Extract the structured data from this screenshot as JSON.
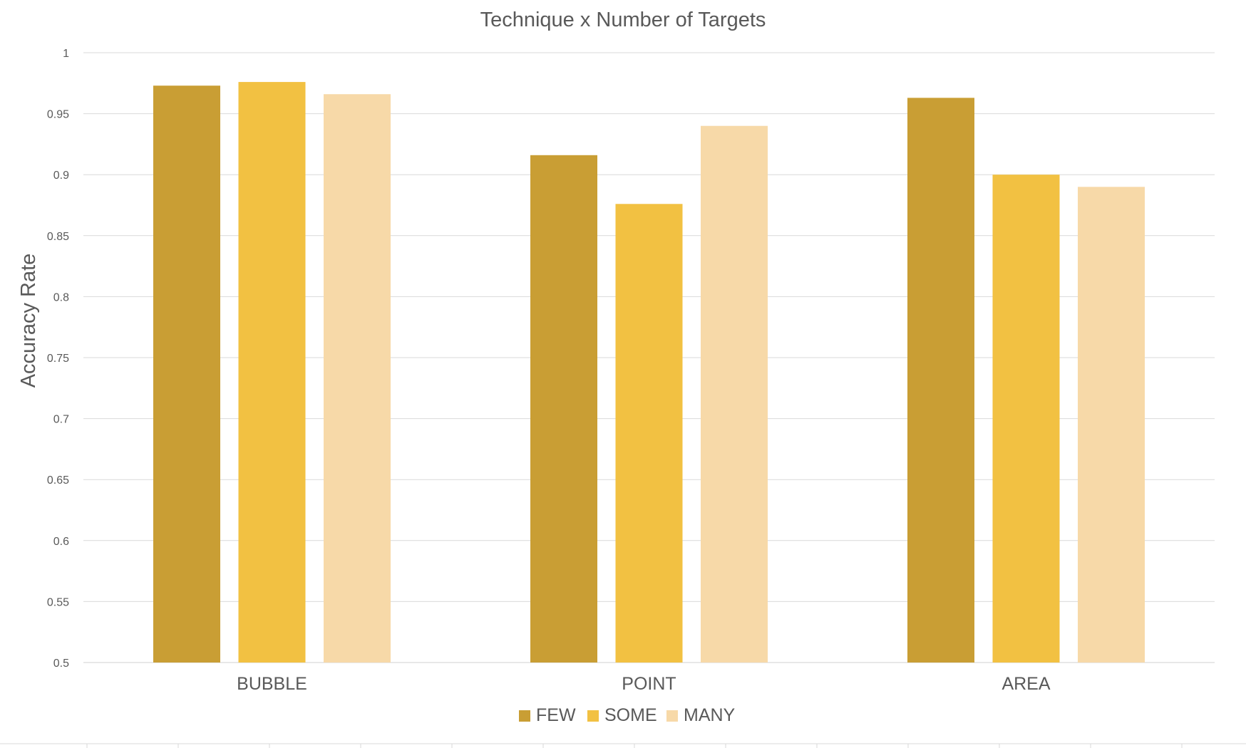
{
  "chart_data": {
    "type": "bar",
    "title": "Technique x Number of Targets",
    "xlabel": "",
    "ylabel": "Accuracy Rate",
    "categories": [
      "BUBBLE",
      "POINT",
      "AREA"
    ],
    "series": [
      {
        "name": "FEW",
        "values": [
          0.973,
          0.916,
          0.963
        ],
        "color": "#c99e34"
      },
      {
        "name": "SOME",
        "values": [
          0.976,
          0.876,
          0.9
        ],
        "color": "#f2c142"
      },
      {
        "name": "MANY",
        "values": [
          0.966,
          0.94,
          0.89
        ],
        "color": "#f7d9a8"
      }
    ],
    "ylim": [
      0.5,
      1
    ],
    "yticks": [
      0.5,
      0.55,
      0.6,
      0.65,
      0.7,
      0.75,
      0.8,
      0.85,
      0.9,
      0.95,
      1
    ],
    "ytick_labels": [
      "0.5",
      "0.55",
      "0.6",
      "0.65",
      "0.7",
      "0.75",
      "0.8",
      "0.85",
      "0.9",
      "0.95",
      "1"
    ],
    "grid": true,
    "legend_position": "bottom-center"
  }
}
